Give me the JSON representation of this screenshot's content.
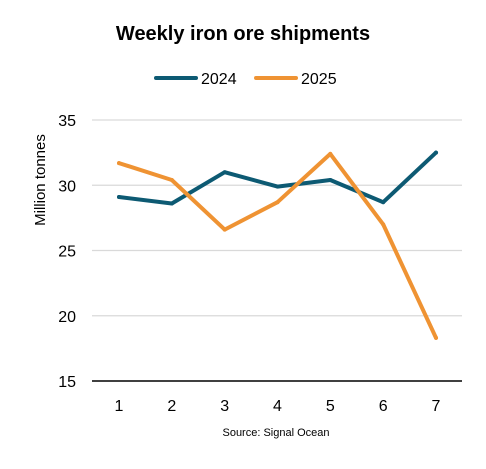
{
  "chart_data": {
    "type": "line",
    "title": "Weekly iron ore shipments",
    "ylabel": "Million tonnes",
    "xlabel": "",
    "source": "Source: Signal Ocean",
    "categories": [
      "1",
      "2",
      "3",
      "4",
      "5",
      "6",
      "7"
    ],
    "ylim": [
      15,
      35
    ],
    "yticks": [
      15,
      20,
      25,
      30,
      35
    ],
    "grid": true,
    "legend_position": "top-center",
    "series": [
      {
        "name": "2024",
        "color": "#0d5a73",
        "values": [
          29.1,
          28.6,
          31.0,
          29.9,
          30.4,
          28.7,
          32.5
        ]
      },
      {
        "name": "2025",
        "color": "#ef9333",
        "values": [
          31.7,
          30.4,
          26.6,
          28.7,
          32.4,
          27.0,
          18.3
        ]
      }
    ]
  }
}
